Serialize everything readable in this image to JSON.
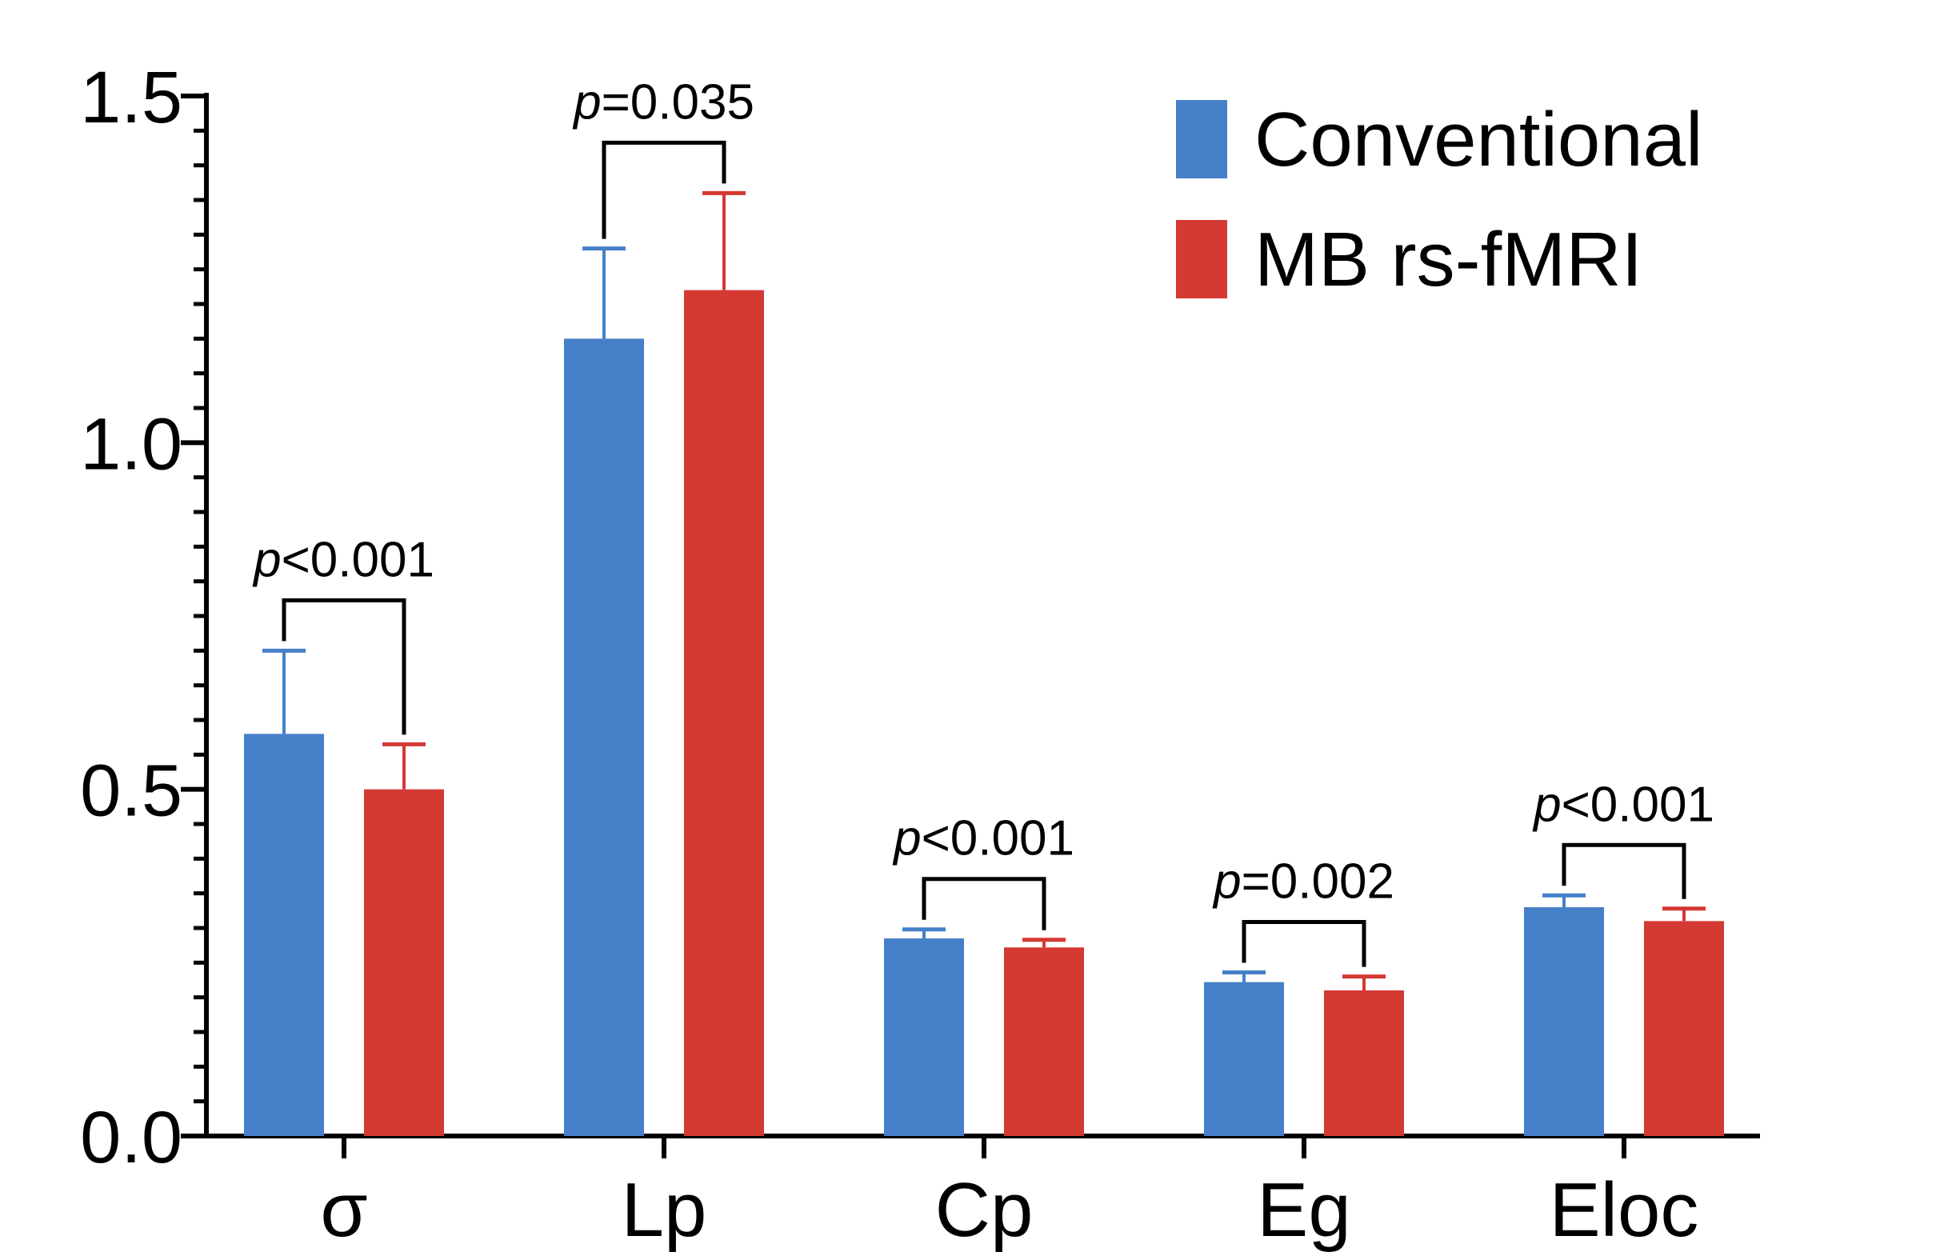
{
  "chart_data": {
    "type": "bar",
    "title": "",
    "xlabel": "",
    "ylabel": "",
    "ylim": [
      0,
      1.5
    ],
    "y_ticks": [
      "0.0",
      "0.5",
      "1.0",
      "1.5"
    ],
    "y_tick_values": [
      0,
      0.5,
      1.0,
      1.5
    ],
    "y_minor_step": 0.05,
    "categories": [
      "σ",
      "Lp",
      "Cp",
      "Eg",
      "Eloc"
    ],
    "series": [
      {
        "name": "Conventional",
        "color": "#4680C9",
        "values": [
          0.58,
          1.15,
          0.285,
          0.222,
          0.33
        ],
        "errors": [
          0.12,
          0.13,
          0.013,
          0.014,
          0.017
        ]
      },
      {
        "name": "MB rs-fMRI",
        "color": "#D43933",
        "values": [
          0.5,
          1.22,
          0.272,
          0.21,
          0.31
        ],
        "errors": [
          0.065,
          0.14,
          0.011,
          0.02,
          0.018
        ]
      }
    ],
    "annotations": [
      {
        "category": "σ",
        "p_symbol": "p",
        "text": "<0.001"
      },
      {
        "category": "Lp",
        "p_symbol": "p",
        "text": "=0.035"
      },
      {
        "category": "Cp",
        "p_symbol": "p",
        "text": "<0.001"
      },
      {
        "category": "Eg",
        "p_symbol": "p",
        "text": "=0.002"
      },
      {
        "category": "Eloc",
        "p_symbol": "p",
        "text": "<0.001"
      }
    ],
    "legend_position": "top-right",
    "grid": false
  }
}
